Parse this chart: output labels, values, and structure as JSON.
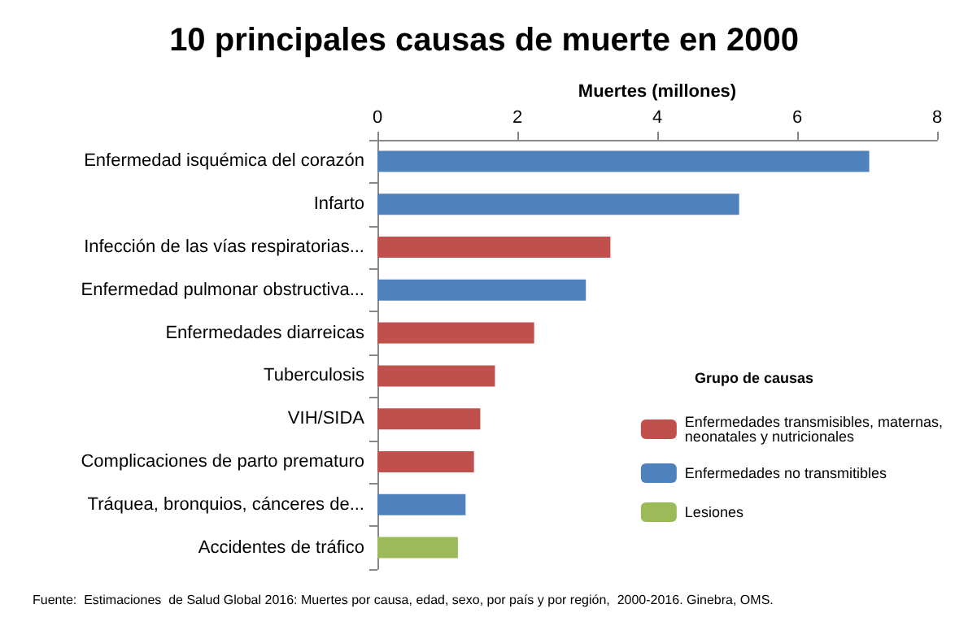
{
  "chart_data": {
    "type": "bar",
    "orientation": "horizontal",
    "title": "10 principales causas de muerte en 2000",
    "xlabel": "Muertes (millones)",
    "legend_title": "Grupo de causas",
    "legend": "right",
    "categories": [
      "Enfermedad isquémica del corazón",
      "Infarto",
      "Infección de las vías respiratorias...",
      "Enfermedad pulmonar obstructiva...",
      "Enfermedades diarreicas",
      "Tuberculosis",
      "VIH/SIDA",
      "Complicaciones de parto prematuro",
      "Tráquea, bronquios, cánceres de...",
      "Accidentes de tráfico"
    ],
    "series": [
      {
        "name": "Enfermedades transmisibles, maternas, neonatales y nutricionales",
        "color": "#c0504d",
        "values": [
          null,
          null,
          3.33,
          null,
          2.24,
          1.68,
          1.47,
          1.38,
          null,
          null
        ]
      },
      {
        "name": "Enfermedades no transmitibles",
        "color": "#4f81bd",
        "values": [
          7.03,
          5.17,
          null,
          2.98,
          null,
          null,
          null,
          null,
          1.26,
          null
        ]
      },
      {
        "name": "Lesiones",
        "color": "#9bbb59",
        "values": [
          null,
          null,
          null,
          null,
          null,
          null,
          null,
          null,
          null,
          1.15
        ]
      }
    ],
    "xlim": [
      0,
      8
    ],
    "xticks": [
      0,
      2,
      4,
      6,
      8
    ],
    "grid": false,
    "annotations": [
      "Fuente:  Estimaciones  de Salud Global 2016: Muertes por causa, edad, sexo, por país y por región,  2000-2016. Ginebra, OMS."
    ]
  }
}
